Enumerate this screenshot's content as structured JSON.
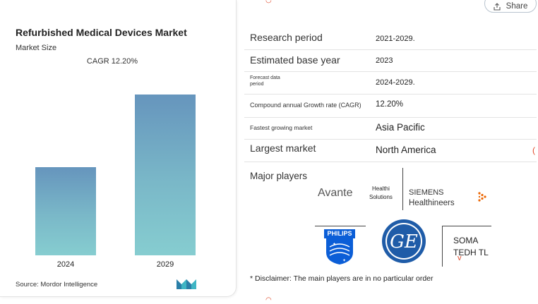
{
  "card": {
    "title": "Refurbished Medical Devices Market",
    "subtitle": "Market Size",
    "source": "Source: Mordor Intelligence",
    "brand_logo_icon": "mordor-logo-icon"
  },
  "chart_data": {
    "type": "bar",
    "title": "Refurbished Medical Devices Market",
    "subtitle": "Market Size",
    "annotation": "CAGR 12.20%",
    "categories": [
      "2024",
      "2029"
    ],
    "values": [
      0.55,
      1.0
    ],
    "xlabel": "",
    "ylabel": "",
    "grid": false,
    "colors": [
      "#6695bd",
      "#86cdd0"
    ]
  },
  "share": {
    "label": "Share",
    "icon": "share-icon"
  },
  "table": {
    "rows": [
      {
        "key": "Research period",
        "value": "2021-2029."
      },
      {
        "key": "Estimated base year",
        "value": "2023"
      },
      {
        "key": "Forecast data period",
        "value": "2024-2029."
      },
      {
        "key": "Compound annual Growth rate (CAGR)",
        "value": "12.20%"
      },
      {
        "key": "Fastest growing market",
        "value": "Asia Pacific"
      },
      {
        "key": "Largest market",
        "value": "North America"
      }
    ],
    "forecast_line1": "Forecast data",
    "forecast_line2": "period"
  },
  "players": {
    "label": "Major players",
    "avante": "Avante",
    "healthi_line1": "Healthi",
    "healthi_line2": "Solutions",
    "siemens_line1": "SIEMENS",
    "siemens_line2": "Healthineers",
    "philips": "PHILIPS",
    "ge": "GE",
    "soma_line1": "SOMA",
    "soma_line2": "TEDH TL"
  },
  "disclaimer": "* Disclaimer: The main players are in no particular order"
}
